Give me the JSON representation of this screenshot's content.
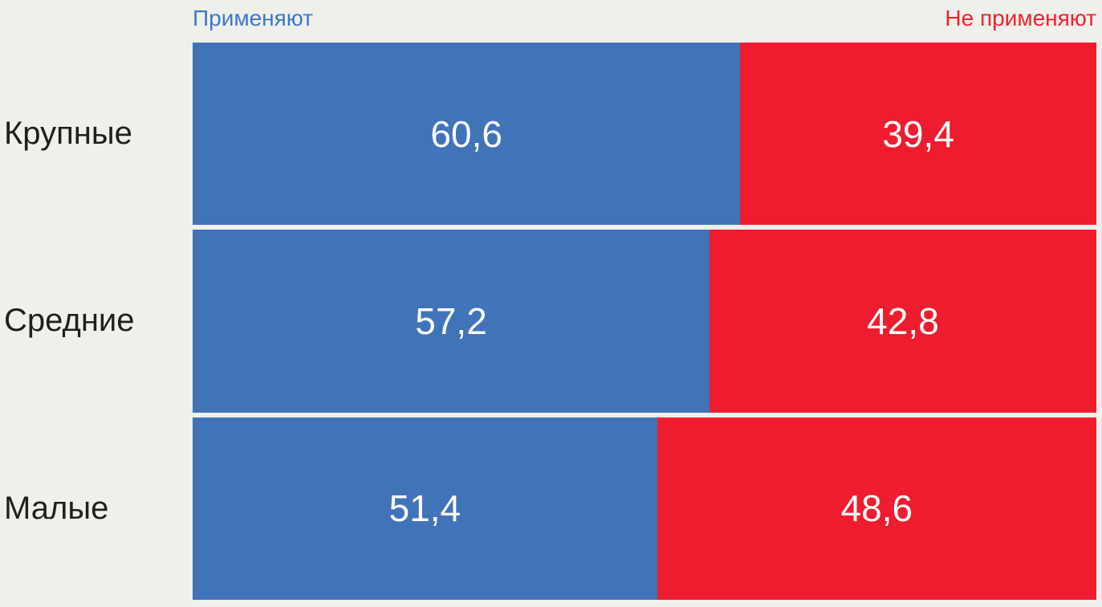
{
  "chart_data": {
    "type": "bar",
    "orientation": "horizontal",
    "stacked": true,
    "units": "percent",
    "categories": [
      "Крупные",
      "Средние",
      "Малые"
    ],
    "series": [
      {
        "name": "Применяют",
        "color": "#4173b8",
        "values": [
          60.6,
          57.2,
          51.4
        ],
        "value_labels": [
          "60,6",
          "57,2",
          "51,4"
        ]
      },
      {
        "name": "Не применяют",
        "color": "#ee1c2e",
        "values": [
          39.4,
          42.8,
          48.6
        ],
        "value_labels": [
          "39,4",
          "42,8",
          "48,6"
        ]
      }
    ],
    "xlim": [
      0,
      100
    ],
    "grid": false,
    "legend_position": "top",
    "value_labels_inside": true
  },
  "legend": {
    "left": "Применяют",
    "right": "Не применяют"
  },
  "colors": {
    "background": "#eff0eb",
    "bar_apply": "#4173b8",
    "bar_not_apply": "#ee1c2e",
    "legend_apply_text": "#3d78c8",
    "legend_not_apply_text": "#f5202d",
    "category_text": "#221e1f",
    "value_text": "#ffffff"
  }
}
